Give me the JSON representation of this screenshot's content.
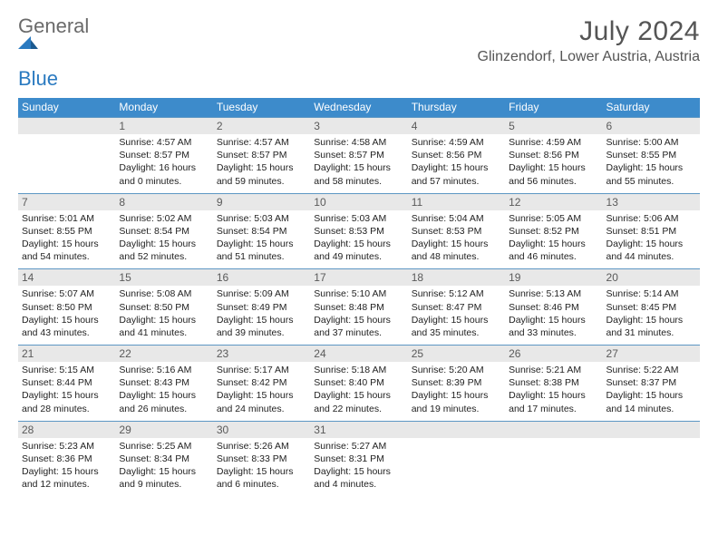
{
  "brand": {
    "gray": "General",
    "blue": "Blue"
  },
  "title": "July 2024",
  "location": "Glinzendorf, Lower Austria, Austria",
  "colors": {
    "header_bg": "#3d8bcb",
    "daybar_bg": "#e8e8e8",
    "daybar_border": "#5d97c4",
    "title_color": "#555555",
    "text_color": "#222222"
  },
  "weekdays": [
    "Sunday",
    "Monday",
    "Tuesday",
    "Wednesday",
    "Thursday",
    "Friday",
    "Saturday"
  ],
  "weeks": [
    [
      null,
      {
        "d": "1",
        "sr": "4:57 AM",
        "ss": "8:57 PM",
        "dl": "16 hours and 0 minutes."
      },
      {
        "d": "2",
        "sr": "4:57 AM",
        "ss": "8:57 PM",
        "dl": "15 hours and 59 minutes."
      },
      {
        "d": "3",
        "sr": "4:58 AM",
        "ss": "8:57 PM",
        "dl": "15 hours and 58 minutes."
      },
      {
        "d": "4",
        "sr": "4:59 AM",
        "ss": "8:56 PM",
        "dl": "15 hours and 57 minutes."
      },
      {
        "d": "5",
        "sr": "4:59 AM",
        "ss": "8:56 PM",
        "dl": "15 hours and 56 minutes."
      },
      {
        "d": "6",
        "sr": "5:00 AM",
        "ss": "8:55 PM",
        "dl": "15 hours and 55 minutes."
      }
    ],
    [
      {
        "d": "7",
        "sr": "5:01 AM",
        "ss": "8:55 PM",
        "dl": "15 hours and 54 minutes."
      },
      {
        "d": "8",
        "sr": "5:02 AM",
        "ss": "8:54 PM",
        "dl": "15 hours and 52 minutes."
      },
      {
        "d": "9",
        "sr": "5:03 AM",
        "ss": "8:54 PM",
        "dl": "15 hours and 51 minutes."
      },
      {
        "d": "10",
        "sr": "5:03 AM",
        "ss": "8:53 PM",
        "dl": "15 hours and 49 minutes."
      },
      {
        "d": "11",
        "sr": "5:04 AM",
        "ss": "8:53 PM",
        "dl": "15 hours and 48 minutes."
      },
      {
        "d": "12",
        "sr": "5:05 AM",
        "ss": "8:52 PM",
        "dl": "15 hours and 46 minutes."
      },
      {
        "d": "13",
        "sr": "5:06 AM",
        "ss": "8:51 PM",
        "dl": "15 hours and 44 minutes."
      }
    ],
    [
      {
        "d": "14",
        "sr": "5:07 AM",
        "ss": "8:50 PM",
        "dl": "15 hours and 43 minutes."
      },
      {
        "d": "15",
        "sr": "5:08 AM",
        "ss": "8:50 PM",
        "dl": "15 hours and 41 minutes."
      },
      {
        "d": "16",
        "sr": "5:09 AM",
        "ss": "8:49 PM",
        "dl": "15 hours and 39 minutes."
      },
      {
        "d": "17",
        "sr": "5:10 AM",
        "ss": "8:48 PM",
        "dl": "15 hours and 37 minutes."
      },
      {
        "d": "18",
        "sr": "5:12 AM",
        "ss": "8:47 PM",
        "dl": "15 hours and 35 minutes."
      },
      {
        "d": "19",
        "sr": "5:13 AM",
        "ss": "8:46 PM",
        "dl": "15 hours and 33 minutes."
      },
      {
        "d": "20",
        "sr": "5:14 AM",
        "ss": "8:45 PM",
        "dl": "15 hours and 31 minutes."
      }
    ],
    [
      {
        "d": "21",
        "sr": "5:15 AM",
        "ss": "8:44 PM",
        "dl": "15 hours and 28 minutes."
      },
      {
        "d": "22",
        "sr": "5:16 AM",
        "ss": "8:43 PM",
        "dl": "15 hours and 26 minutes."
      },
      {
        "d": "23",
        "sr": "5:17 AM",
        "ss": "8:42 PM",
        "dl": "15 hours and 24 minutes."
      },
      {
        "d": "24",
        "sr": "5:18 AM",
        "ss": "8:40 PM",
        "dl": "15 hours and 22 minutes."
      },
      {
        "d": "25",
        "sr": "5:20 AM",
        "ss": "8:39 PM",
        "dl": "15 hours and 19 minutes."
      },
      {
        "d": "26",
        "sr": "5:21 AM",
        "ss": "8:38 PM",
        "dl": "15 hours and 17 minutes."
      },
      {
        "d": "27",
        "sr": "5:22 AM",
        "ss": "8:37 PM",
        "dl": "15 hours and 14 minutes."
      }
    ],
    [
      {
        "d": "28",
        "sr": "5:23 AM",
        "ss": "8:36 PM",
        "dl": "15 hours and 12 minutes."
      },
      {
        "d": "29",
        "sr": "5:25 AM",
        "ss": "8:34 PM",
        "dl": "15 hours and 9 minutes."
      },
      {
        "d": "30",
        "sr": "5:26 AM",
        "ss": "8:33 PM",
        "dl": "15 hours and 6 minutes."
      },
      {
        "d": "31",
        "sr": "5:27 AM",
        "ss": "8:31 PM",
        "dl": "15 hours and 4 minutes."
      },
      null,
      null,
      null
    ]
  ],
  "labels": {
    "sunrise": "Sunrise:",
    "sunset": "Sunset:",
    "daylight": "Daylight:"
  }
}
